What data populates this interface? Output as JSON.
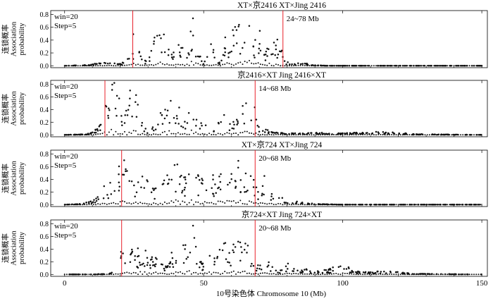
{
  "chart_data": [
    {
      "type": "scatter",
      "title": "XT×京2416  XT×Jing 2416",
      "ylabel": [
        "连锁概率",
        "Association",
        "probability"
      ],
      "annotation": [
        "win=20",
        "Step=5"
      ],
      "region_label": "24~78 Mb",
      "markers_x": [
        24.5,
        78.5
      ],
      "marker_color": "#e8202a",
      "series": [
        {
          "shape": [
            [
              0,
              0.0
            ],
            [
              8,
              0.01
            ],
            [
              12,
              0.03
            ],
            [
              16,
              0.04
            ],
            [
              20,
              0.02
            ],
            [
              23,
              0.12
            ],
            [
              24,
              0.22
            ],
            [
              26,
              0.38
            ],
            [
              28,
              0.12
            ],
            [
              30,
              0.05
            ],
            [
              32,
              0.3
            ],
            [
              34,
              0.65
            ],
            [
              36,
              0.35
            ],
            [
              38,
              0.2
            ],
            [
              40,
              0.15
            ],
            [
              42,
              0.22
            ],
            [
              44,
              0.3
            ],
            [
              46,
              0.55
            ],
            [
              48,
              0.25
            ],
            [
              50,
              0.05
            ],
            [
              52,
              0.3
            ],
            [
              54,
              0.18
            ],
            [
              56,
              0.05
            ],
            [
              58,
              0.3
            ],
            [
              60,
              0.45
            ],
            [
              62,
              0.6
            ],
            [
              64,
              0.4
            ],
            [
              66,
              0.7
            ],
            [
              68,
              0.3
            ],
            [
              70,
              0.45
            ],
            [
              72,
              0.15
            ],
            [
              74,
              0.3
            ],
            [
              76,
              0.4
            ],
            [
              78,
              0.2
            ],
            [
              79,
              0.06
            ],
            [
              82,
              0.02
            ],
            [
              86,
              0.05
            ],
            [
              88,
              0.01
            ],
            [
              95,
              0.0
            ],
            [
              150,
              0.0
            ]
          ],
          "seed": 11,
          "n": 300,
          "xmax": 150
        }
      ]
    },
    {
      "type": "scatter",
      "title": "京2416×XT  Jing 2416×XT",
      "ylabel": [
        "连锁概率",
        "Association",
        "probability"
      ],
      "annotation": [
        "win=20",
        "Step=5"
      ],
      "region_label": "14~68 Mb",
      "markers_x": [
        14.5,
        68.5
      ],
      "marker_color": "#e8202a",
      "series": [
        {
          "shape": [
            [
              0,
              0.0
            ],
            [
              8,
              0.01
            ],
            [
              10,
              0.04
            ],
            [
              12,
              0.1
            ],
            [
              14,
              0.3
            ],
            [
              16,
              0.5
            ],
            [
              18,
              0.7
            ],
            [
              20,
              0.45
            ],
            [
              22,
              0.3
            ],
            [
              24,
              0.5
            ],
            [
              26,
              0.4
            ],
            [
              28,
              0.15
            ],
            [
              30,
              0.05
            ],
            [
              34,
              0.15
            ],
            [
              36,
              0.4
            ],
            [
              38,
              0.5
            ],
            [
              40,
              0.3
            ],
            [
              42,
              0.15
            ],
            [
              44,
              0.25
            ],
            [
              46,
              0.55
            ],
            [
              48,
              0.3
            ],
            [
              50,
              0.15
            ],
            [
              52,
              0.2
            ],
            [
              54,
              0.1
            ],
            [
              56,
              0.2
            ],
            [
              58,
              0.3
            ],
            [
              60,
              0.15
            ],
            [
              62,
              0.2
            ],
            [
              64,
              0.3
            ],
            [
              66,
              0.5
            ],
            [
              68,
              0.3
            ],
            [
              70,
              0.12
            ],
            [
              74,
              0.05
            ],
            [
              80,
              0.02
            ],
            [
              90,
              0.03
            ],
            [
              100,
              0.02
            ],
            [
              110,
              0.04
            ],
            [
              120,
              0.03
            ],
            [
              125,
              0.01
            ],
            [
              150,
              0.0
            ]
          ],
          "seed": 23,
          "n": 300,
          "xmax": 150
        }
      ]
    },
    {
      "type": "scatter",
      "title": "XT×京724  XT×Jing 724",
      "ylabel": [
        "连锁概率",
        "Association",
        "probability"
      ],
      "annotation": [
        "win=20",
        "Step=5"
      ],
      "region_label": "20~68 Mb",
      "markers_x": [
        20.5,
        68.5
      ],
      "marker_color": "#e8202a",
      "series": [
        {
          "shape": [
            [
              0,
              0.0
            ],
            [
              6,
              0.01
            ],
            [
              10,
              0.06
            ],
            [
              14,
              0.15
            ],
            [
              16,
              0.22
            ],
            [
              18,
              0.35
            ],
            [
              20,
              0.55
            ],
            [
              22,
              0.45
            ],
            [
              24,
              0.35
            ],
            [
              26,
              0.25
            ],
            [
              28,
              0.35
            ],
            [
              30,
              0.3
            ],
            [
              32,
              0.2
            ],
            [
              34,
              0.4
            ],
            [
              36,
              0.3
            ],
            [
              38,
              0.45
            ],
            [
              40,
              0.55
            ],
            [
              42,
              0.35
            ],
            [
              44,
              0.4
            ],
            [
              46,
              0.55
            ],
            [
              48,
              0.4
            ],
            [
              50,
              0.3
            ],
            [
              52,
              0.45
            ],
            [
              54,
              0.35
            ],
            [
              56,
              0.4
            ],
            [
              58,
              0.5
            ],
            [
              60,
              0.4
            ],
            [
              62,
              0.55
            ],
            [
              64,
              0.45
            ],
            [
              66,
              0.5
            ],
            [
              68,
              0.35
            ],
            [
              70,
              0.2
            ],
            [
              72,
              0.25
            ],
            [
              74,
              0.15
            ],
            [
              76,
              0.1
            ],
            [
              78,
              0.12
            ],
            [
              80,
              0.05
            ],
            [
              86,
              0.03
            ],
            [
              90,
              0.01
            ],
            [
              100,
              0.0
            ],
            [
              150,
              0.0
            ]
          ],
          "seed": 37,
          "n": 300,
          "xmax": 150
        }
      ]
    },
    {
      "type": "scatter",
      "title": "京724×XT  Jing 724×XT",
      "ylabel": [
        "连锁概率",
        "Association",
        "probability"
      ],
      "annotation": [
        "win=20",
        "Step=5"
      ],
      "region_label": "20~68 Mb",
      "markers_x": [
        20.5,
        68.5
      ],
      "marker_color": "#e8202a",
      "series": [
        {
          "shape": [
            [
              0,
              0.0
            ],
            [
              10,
              0.0
            ],
            [
              16,
              0.01
            ],
            [
              18,
              0.05
            ],
            [
              20,
              0.12
            ],
            [
              21,
              0.4
            ],
            [
              22,
              0.5
            ],
            [
              24,
              0.35
            ],
            [
              26,
              0.2
            ],
            [
              28,
              0.35
            ],
            [
              30,
              0.15
            ],
            [
              32,
              0.3
            ],
            [
              34,
              0.2
            ],
            [
              36,
              0.1
            ],
            [
              38,
              0.15
            ],
            [
              40,
              0.3
            ],
            [
              42,
              0.4
            ],
            [
              44,
              0.35
            ],
            [
              46,
              0.6
            ],
            [
              48,
              0.25
            ],
            [
              50,
              0.15
            ],
            [
              52,
              0.25
            ],
            [
              54,
              0.2
            ],
            [
              56,
              0.35
            ],
            [
              58,
              0.4
            ],
            [
              60,
              0.35
            ],
            [
              62,
              0.45
            ],
            [
              64,
              0.4
            ],
            [
              66,
              0.35
            ],
            [
              68,
              0.15
            ],
            [
              70,
              0.1
            ],
            [
              72,
              0.3
            ],
            [
              74,
              0.1
            ],
            [
              78,
              0.05
            ],
            [
              80,
              0.15
            ],
            [
              84,
              0.08
            ],
            [
              88,
              0.06
            ],
            [
              92,
              0.04
            ],
            [
              96,
              0.08
            ],
            [
              100,
              0.15
            ],
            [
              104,
              0.04
            ],
            [
              110,
              0.03
            ],
            [
              116,
              0.05
            ],
            [
              120,
              0.03
            ],
            [
              125,
              0.01
            ],
            [
              150,
              0.0
            ]
          ],
          "seed": 53,
          "n": 300,
          "xmax": 150
        }
      ]
    }
  ],
  "x_axis": {
    "label": "10号染色体 Chromosome 10 (Mb)",
    "ticks": [
      0,
      50,
      100,
      150
    ],
    "range": [
      -5,
      152
    ]
  },
  "y_axis": {
    "ticks": [
      "0.0",
      "0.2",
      "0.4",
      "0.6",
      "0.8"
    ],
    "range": [
      -0.03,
      0.86
    ]
  }
}
